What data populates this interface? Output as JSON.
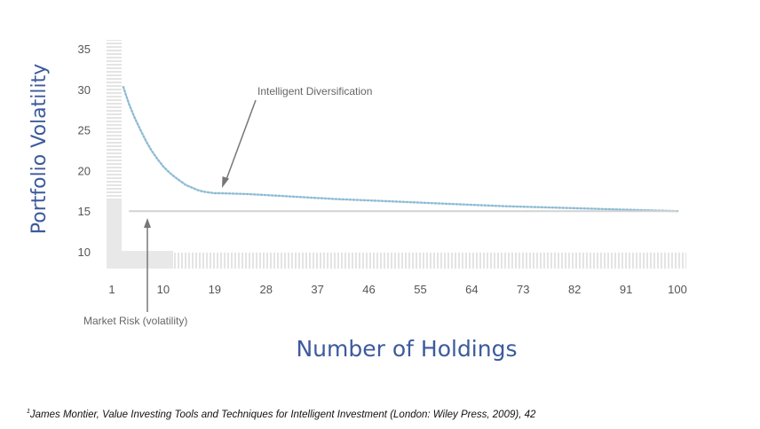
{
  "chart_data": {
    "type": "line",
    "title": "",
    "xlabel": "Number of Holdings",
    "ylabel": "Portfolio Volatility",
    "x_ticks": [
      "1",
      "10",
      "19",
      "28",
      "37",
      "46",
      "55",
      "64",
      "73",
      "82",
      "91",
      "100"
    ],
    "y_ticks": [
      "10",
      "15",
      "20",
      "25",
      "30",
      "35"
    ],
    "xlim": [
      1,
      100
    ],
    "ylim": [
      8,
      35
    ],
    "grid": false,
    "series": [
      {
        "key": "portfolio",
        "style": "dotted",
        "color": "#8fbcd4",
        "x": [
          3,
          4,
          5,
          6,
          7,
          8,
          9,
          10,
          11,
          12,
          13,
          14,
          15,
          16,
          17,
          18,
          19,
          20,
          25,
          30,
          40,
          50,
          60,
          70,
          80,
          90,
          100
        ],
        "y": [
          30.3,
          28.2,
          26.5,
          25.0,
          23.6,
          22.4,
          21.4,
          20.5,
          19.8,
          19.2,
          18.7,
          18.2,
          17.9,
          17.6,
          17.4,
          17.3,
          17.2,
          17.2,
          17.1,
          16.9,
          16.5,
          16.2,
          15.9,
          15.6,
          15.4,
          15.2,
          15.0
        ]
      },
      {
        "key": "market",
        "style": "solid",
        "color": "#d2d2d2",
        "x": [
          4,
          100
        ],
        "y": [
          15,
          15
        ]
      }
    ],
    "annotations": [
      {
        "key": "intelligent",
        "text": "Intelligent Diversification",
        "x": 19,
        "y": 17.5
      },
      {
        "key": "market",
        "text": "Market Risk (volatility)",
        "x": 7,
        "y": 15
      }
    ]
  },
  "footnote": {
    "marker": "1",
    "text": "James Montier, Value Investing Tools and Techniques for Intelligent Investment (London: Wiley Press, 2009), 42"
  }
}
